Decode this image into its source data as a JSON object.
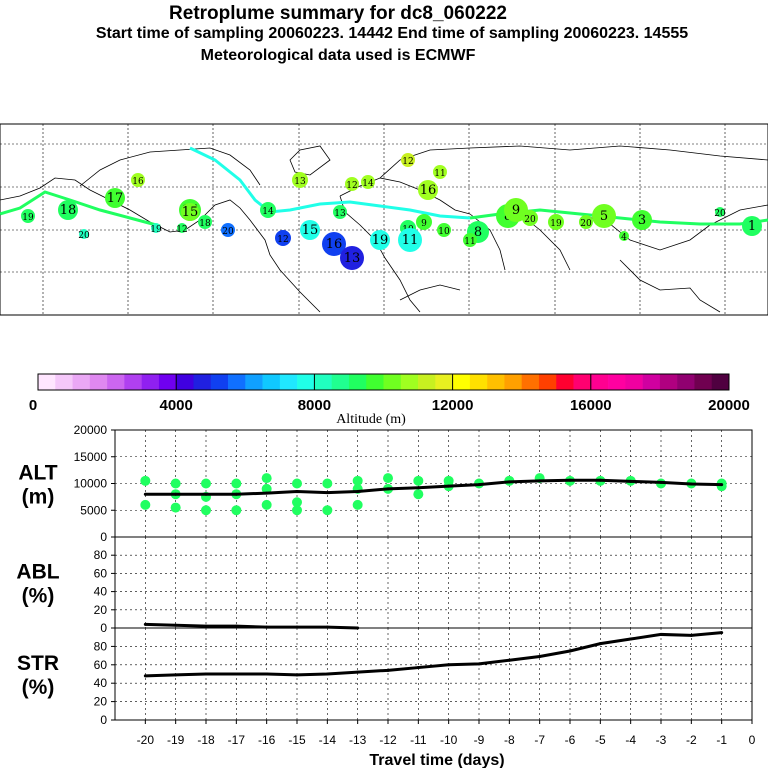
{
  "header": {
    "title": "Retroplume summary for dc8_060222",
    "sampling_line": "Start time of sampling 20060223. 14442      End time of sampling 20060223. 14555",
    "met_line": "Meteorological data used is ECMWF"
  },
  "colorbar": {
    "label": "Altitude (m)",
    "ticks": [
      "0",
      "4000",
      "8000",
      "12000",
      "16000",
      "20000"
    ],
    "colors": [
      "#ffe6ff",
      "#f5c8fa",
      "#eaa8f5",
      "#df88f0",
      "#cc66f0",
      "#b040f0",
      "#9020f0",
      "#7000f0",
      "#4000e0",
      "#2020e0",
      "#1040f0",
      "#1070ff",
      "#10a0ff",
      "#10c8ff",
      "#20e8ff",
      "#20ffe8",
      "#20ffc0",
      "#20ff90",
      "#20ff60",
      "#40ff30",
      "#70ff20",
      "#a0ff20",
      "#c8f020",
      "#e8f020",
      "#ffff00",
      "#ffe000",
      "#ffc000",
      "#ffa000",
      "#ff7000",
      "#ff4000",
      "#ff0030",
      "#ff0070",
      "#ff0090",
      "#ff00a0",
      "#f000a0",
      "#d000a0",
      "#b00080",
      "#900070",
      "#700050",
      "#500040"
    ]
  },
  "map": {
    "labels": [
      "19",
      "18",
      "17",
      "16",
      "20",
      "19",
      "15",
      "12",
      "18",
      "20",
      "14",
      "13",
      "15",
      "16",
      "13",
      "12",
      "13",
      "11",
      "12",
      "10",
      "11",
      "19",
      "9",
      "8",
      "8",
      "9",
      "20",
      "19",
      "5",
      "4",
      "3",
      "20",
      "1",
      "15",
      "16",
      "20",
      "10",
      "11",
      "14",
      "12"
    ]
  },
  "chart_data": [
    {
      "type": "line",
      "panel": "ALT",
      "ylabel": "ALT\n(m)",
      "ylim": [
        0,
        20000
      ],
      "yticks": [
        "0",
        "5000",
        "10000",
        "15000",
        "20000"
      ],
      "x": [
        -20,
        -19,
        -18,
        -17,
        -16,
        -15,
        -14,
        -13,
        -12,
        -11,
        -10,
        -9,
        -8,
        -7,
        -6,
        -5,
        -4,
        -3,
        -2,
        -1
      ],
      "values": [
        8000,
        8000,
        8000,
        8000,
        8200,
        8500,
        8300,
        8500,
        9000,
        9200,
        9500,
        9800,
        10300,
        10500,
        10600,
        10600,
        10400,
        10200,
        9900,
        9800
      ],
      "scatter": [
        [
          -20,
          10500
        ],
        [
          -20,
          6000
        ],
        [
          -19,
          10000
        ],
        [
          -19,
          8000
        ],
        [
          -19,
          5500
        ],
        [
          -18,
          10000
        ],
        [
          -18,
          7500
        ],
        [
          -18,
          5000
        ],
        [
          -17,
          10000
        ],
        [
          -17,
          8000
        ],
        [
          -17,
          5000
        ],
        [
          -16,
          11000
        ],
        [
          -16,
          9000
        ],
        [
          -16,
          6000
        ],
        [
          -15,
          10000
        ],
        [
          -15,
          6500
        ],
        [
          -15,
          5000
        ],
        [
          -14,
          10000
        ],
        [
          -14,
          5000
        ],
        [
          -13,
          10500
        ],
        [
          -13,
          9000
        ],
        [
          -13,
          6000
        ],
        [
          -12,
          11000
        ],
        [
          -12,
          9000
        ],
        [
          -11,
          10500
        ],
        [
          -11,
          8000
        ],
        [
          -10,
          10500
        ],
        [
          -10,
          9500
        ],
        [
          -9,
          10000
        ],
        [
          -8,
          10500
        ],
        [
          -7,
          11000
        ],
        [
          -6,
          10500
        ],
        [
          -5,
          10500
        ],
        [
          -4,
          10500
        ],
        [
          -3,
          10000
        ],
        [
          -2,
          10000
        ],
        [
          -1,
          10000
        ],
        [
          -1,
          9500
        ]
      ]
    },
    {
      "type": "line",
      "panel": "ABL",
      "ylabel": "ABL\n(%)",
      "ylim": [
        0,
        100
      ],
      "yticks": [
        "0",
        "20",
        "40",
        "60",
        "80"
      ],
      "x": [
        -20,
        -19,
        -18,
        -17,
        -16,
        -15,
        -14,
        -13
      ],
      "values": [
        4,
        3,
        2,
        2,
        1,
        1,
        1,
        0
      ]
    },
    {
      "type": "line",
      "panel": "STR",
      "ylabel": "STR\n(%)",
      "ylim": [
        0,
        100
      ],
      "yticks": [
        "0",
        "20",
        "40",
        "60",
        "80"
      ],
      "x": [
        -20,
        -19,
        -18,
        -17,
        -16,
        -15,
        -14,
        -13,
        -12,
        -11,
        -10,
        -9,
        -8,
        -7,
        -6,
        -5,
        -4,
        -3,
        -2,
        -1
      ],
      "values": [
        48,
        49,
        50,
        50,
        50,
        49,
        50,
        52,
        54,
        57,
        60,
        61,
        65,
        69,
        75,
        83,
        88,
        93,
        92,
        95
      ],
      "xlabel": "Travel time (days)",
      "xticks": [
        "-20",
        "-19",
        "-18",
        "-17",
        "-16",
        "-15",
        "-14",
        "-13",
        "-12",
        "-11",
        "-10",
        "-9",
        "-8",
        "-7",
        "-6",
        "-5",
        "-4",
        "-3",
        "-2",
        "-1",
        "0"
      ]
    }
  ]
}
